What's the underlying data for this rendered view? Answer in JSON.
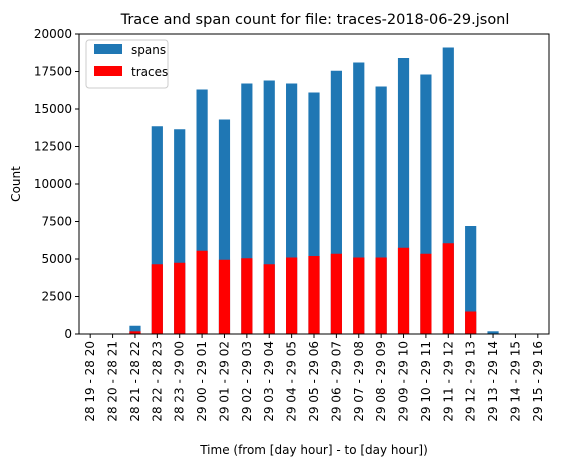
{
  "chart_data": {
    "type": "bar",
    "title": "Trace and span count for file: traces-2018-06-29.jsonl",
    "xlabel": "Time (from [day hour] - to [day hour])",
    "ylabel": "Count",
    "ylim": [
      0,
      20000
    ],
    "yticks": [
      0,
      2500,
      5000,
      7500,
      10000,
      12500,
      15000,
      17500,
      20000
    ],
    "categories": [
      "28 19 - 28 20",
      "28 20 - 28 21",
      "28 21 - 28 22",
      "28 22 - 28 23",
      "28 23 - 29 00",
      "29 00 - 29 01",
      "29 01 - 29 02",
      "29 02 - 29 03",
      "29 03 - 29 04",
      "29 04 - 29 05",
      "29 05 - 29 06",
      "29 06 - 29 07",
      "29 07 - 29 08",
      "29 08 - 29 09",
      "29 09 - 29 10",
      "29 10 - 29 11",
      "29 11 - 29 12",
      "29 12 - 29 13",
      "29 13 - 29 14",
      "29 14 - 29 15",
      "29 15 - 29 16"
    ],
    "series": [
      {
        "name": "spans",
        "color": "#1f77b4",
        "values": [
          0,
          0,
          550,
          13850,
          13650,
          16300,
          14300,
          16700,
          16900,
          16700,
          16100,
          17550,
          18100,
          16500,
          18400,
          17300,
          19100,
          7200,
          180,
          0,
          0
        ]
      },
      {
        "name": "traces",
        "color": "#ff0000",
        "values": [
          0,
          0,
          180,
          4650,
          4750,
          5550,
          4950,
          5050,
          4650,
          5100,
          5200,
          5350,
          5100,
          5100,
          5750,
          5350,
          6050,
          1500,
          0,
          0,
          0
        ]
      }
    ],
    "legend_position": "top-left",
    "grid": false
  }
}
